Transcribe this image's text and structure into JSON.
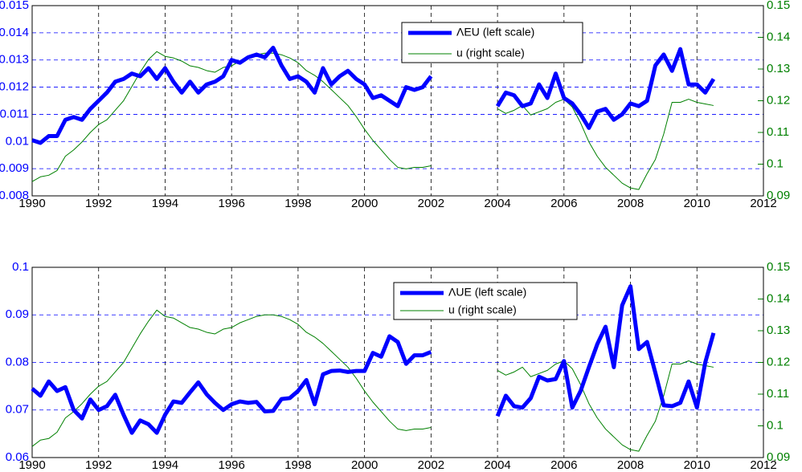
{
  "chart_data": [
    {
      "type": "line",
      "xlim": [
        1990,
        2012
      ],
      "xticks": [
        1990,
        1992,
        1994,
        1996,
        1998,
        2000,
        2002,
        2004,
        2006,
        2008,
        2010,
        2012
      ],
      "ylim": [
        0.008,
        0.015
      ],
      "yticks": [
        0.008,
        0.009,
        0.01,
        0.011,
        0.012,
        0.013,
        0.014,
        0.015
      ],
      "y2lim": [
        0.09,
        0.15
      ],
      "y2ticks": [
        0.09,
        0.1,
        0.11,
        0.12,
        0.13,
        0.14,
        0.15
      ],
      "grid": true,
      "x": [
        1990,
        1990.25,
        1990.5,
        1990.75,
        1991,
        1991.25,
        1991.5,
        1991.75,
        1992,
        1992.25,
        1992.5,
        1992.75,
        1993,
        1993.25,
        1993.5,
        1993.75,
        1994,
        1994.25,
        1994.5,
        1994.75,
        1995,
        1995.25,
        1995.5,
        1995.75,
        1996,
        1996.25,
        1996.5,
        1996.75,
        1997,
        1997.25,
        1997.5,
        1997.75,
        1998,
        1998.25,
        1998.5,
        1998.75,
        1999,
        1999.25,
        1999.5,
        1999.75,
        2000,
        2000.25,
        2000.5,
        2000.75,
        2001,
        2001.25,
        2001.5,
        2001.75,
        2002,
        2002.25,
        2002.5,
        2002.75,
        2003,
        2003.25,
        2003.5,
        2003.75,
        2004,
        2004.25,
        2004.5,
        2004.75,
        2005,
        2005.25,
        2005.5,
        2005.75,
        2006,
        2006.25,
        2006.5,
        2006.75,
        2007,
        2007.25,
        2007.5,
        2007.75,
        2008,
        2008.25,
        2008.5,
        2008.75,
        2009,
        2009.25,
        2009.5,
        2009.75,
        2010,
        2010.25,
        2010.5
      ],
      "series": [
        {
          "name": "ΛEU (left scale)",
          "color": "#0000ff",
          "values": [
            0.01005,
            0.00995,
            0.0102,
            0.0102,
            0.0108,
            0.0109,
            0.0108,
            0.0112,
            0.0115,
            0.0118,
            0.0122,
            0.0123,
            0.0125,
            0.0124,
            0.0127,
            0.0123,
            0.0127,
            0.0122,
            0.0118,
            0.0122,
            0.0118,
            0.0121,
            0.0122,
            0.0124,
            0.013,
            0.0129,
            0.0131,
            0.0132,
            0.0131,
            0.01345,
            0.0128,
            0.0123,
            0.0124,
            0.0122,
            0.0118,
            0.0127,
            0.0121,
            0.0124,
            0.0126,
            0.0123,
            0.0121,
            0.0116,
            0.0117,
            0.0115,
            0.0113,
            0.012,
            0.0119,
            0.012,
            0.0124,
            null,
            null,
            null,
            null,
            null,
            null,
            null,
            0.0113,
            0.0118,
            0.0117,
            0.0113,
            0.0114,
            0.0121,
            0.0116,
            0.0125,
            0.0116,
            0.0114,
            0.011,
            0.0105,
            0.0111,
            0.0112,
            0.0108,
            0.011,
            0.0114,
            0.0113,
            0.0115,
            0.0128,
            0.0132,
            0.0126,
            0.0134,
            0.0121,
            0.0121,
            0.0118,
            0.0123
          ]
        },
        {
          "name": "u (right scale)",
          "color": "#008000",
          "axis": "y2",
          "values": [
            0.0945,
            0.096,
            0.0965,
            0.098,
            0.1025,
            0.1045,
            0.107,
            0.11,
            0.1125,
            0.114,
            0.117,
            0.12,
            0.1245,
            0.129,
            0.133,
            0.1355,
            0.134,
            0.1335,
            0.1325,
            0.131,
            0.1305,
            0.1295,
            0.129,
            0.1305,
            0.131,
            0.1325,
            0.1335,
            0.1345,
            0.135,
            0.135,
            0.1345,
            0.1335,
            0.132,
            0.1295,
            0.128,
            0.126,
            0.1235,
            0.121,
            0.1185,
            0.115,
            0.111,
            0.1075,
            0.1045,
            0.1015,
            0.099,
            0.0985,
            0.099,
            0.099,
            0.0995,
            null,
            null,
            null,
            null,
            null,
            null,
            null,
            0.1175,
            0.116,
            0.117,
            0.1185,
            0.1155,
            0.1165,
            0.1175,
            0.1195,
            0.1205,
            0.118,
            0.113,
            0.107,
            0.1025,
            0.099,
            0.0965,
            0.094,
            0.0925,
            0.092,
            0.097,
            0.1015,
            0.1095,
            0.1195,
            0.1195,
            0.1205,
            0.1195,
            0.119,
            0.1185
          ]
        }
      ]
    },
    {
      "type": "line",
      "xlim": [
        1990,
        2012
      ],
      "xticks": [
        1990,
        1992,
        1994,
        1996,
        1998,
        2000,
        2002,
        2004,
        2006,
        2008,
        2010,
        2012
      ],
      "ylim": [
        0.06,
        0.1
      ],
      "yticks": [
        0.06,
        0.07,
        0.08,
        0.09,
        0.1
      ],
      "y2lim": [
        0.09,
        0.15
      ],
      "y2ticks": [
        0.09,
        0.1,
        0.11,
        0.12,
        0.13,
        0.14,
        0.15
      ],
      "grid": true,
      "x": [
        1990,
        1990.25,
        1990.5,
        1990.75,
        1991,
        1991.25,
        1991.5,
        1991.75,
        1992,
        1992.25,
        1992.5,
        1992.75,
        1993,
        1993.25,
        1993.5,
        1993.75,
        1994,
        1994.25,
        1994.5,
        1994.75,
        1995,
        1995.25,
        1995.5,
        1995.75,
        1996,
        1996.25,
        1996.5,
        1996.75,
        1997,
        1997.25,
        1997.5,
        1997.75,
        1998,
        1998.25,
        1998.5,
        1998.75,
        1999,
        1999.25,
        1999.5,
        1999.75,
        2000,
        2000.25,
        2000.5,
        2000.75,
        2001,
        2001.25,
        2001.5,
        2001.75,
        2002,
        2002.25,
        2002.5,
        2002.75,
        2003,
        2003.25,
        2003.5,
        2003.75,
        2004,
        2004.25,
        2004.5,
        2004.75,
        2005,
        2005.25,
        2005.5,
        2005.75,
        2006,
        2006.25,
        2006.5,
        2006.75,
        2007,
        2007.25,
        2007.5,
        2007.75,
        2008,
        2008.25,
        2008.5,
        2008.75,
        2009,
        2009.25,
        2009.5,
        2009.75,
        2010,
        2010.25,
        2010.5
      ],
      "series": [
        {
          "name": "ΛUE (left scale)",
          "color": "#0000ff",
          "values": [
            0.0745,
            0.073,
            0.076,
            0.074,
            0.0748,
            0.07,
            0.0682,
            0.0722,
            0.07,
            0.0708,
            0.0732,
            0.069,
            0.0652,
            0.0678,
            0.067,
            0.0652,
            0.069,
            0.0718,
            0.0715,
            0.0737,
            0.0758,
            0.0733,
            0.0715,
            0.07,
            0.0712,
            0.0718,
            0.0715,
            0.0717,
            0.0697,
            0.0698,
            0.0723,
            0.0725,
            0.074,
            0.0763,
            0.0712,
            0.0775,
            0.0782,
            0.0783,
            0.078,
            0.0782,
            0.0782,
            0.082,
            0.0812,
            0.0855,
            0.0843,
            0.0797,
            0.0815,
            0.0815,
            0.0822,
            null,
            null,
            null,
            null,
            null,
            null,
            null,
            0.0687,
            0.073,
            0.0708,
            0.0705,
            0.0725,
            0.077,
            0.0762,
            0.0765,
            0.0803,
            0.0705,
            0.074,
            0.079,
            0.0838,
            0.0875,
            0.079,
            0.092,
            0.096,
            0.0828,
            0.0843,
            0.0778,
            0.071,
            0.0708,
            0.0715,
            0.076,
            0.0705,
            0.08,
            0.0862
          ]
        },
        {
          "name": "u (right scale)",
          "color": "#008000",
          "axis": "y2",
          "values": [
            0.0935,
            0.0955,
            0.096,
            0.098,
            0.1025,
            0.1045,
            0.107,
            0.11,
            0.1125,
            0.114,
            0.117,
            0.12,
            0.1245,
            0.129,
            0.133,
            0.1365,
            0.1345,
            0.134,
            0.1325,
            0.131,
            0.1305,
            0.1295,
            0.129,
            0.1305,
            0.131,
            0.1325,
            0.1335,
            0.1345,
            0.135,
            0.135,
            0.1345,
            0.1335,
            0.132,
            0.1295,
            0.128,
            0.126,
            0.1235,
            0.121,
            0.1185,
            0.115,
            0.111,
            0.1075,
            0.1045,
            0.1015,
            0.099,
            0.0985,
            0.099,
            0.099,
            0.0995,
            null,
            null,
            null,
            null,
            null,
            null,
            null,
            0.1175,
            0.116,
            0.117,
            0.1185,
            0.1155,
            0.1165,
            0.1175,
            0.1195,
            0.1205,
            0.118,
            0.113,
            0.107,
            0.1025,
            0.099,
            0.0965,
            0.094,
            0.0925,
            0.092,
            0.097,
            0.1015,
            0.1095,
            0.1195,
            0.1195,
            0.1205,
            0.1195,
            0.119,
            0.1185
          ]
        }
      ]
    }
  ]
}
